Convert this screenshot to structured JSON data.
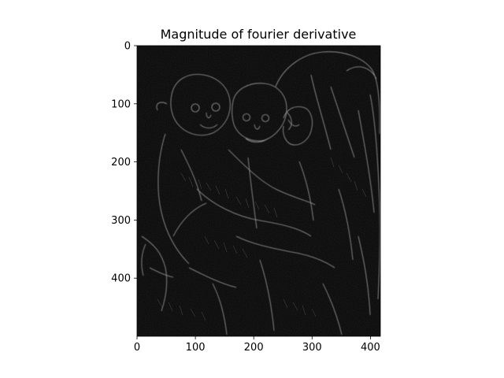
{
  "chart_data": {
    "type": "heatmap",
    "title": "Magnitude of fourier derivative",
    "xlabel": "",
    "ylabel": "",
    "image_width": 417,
    "image_height": 500,
    "xlim": [
      0,
      417
    ],
    "ylim": [
      500,
      0
    ],
    "y_axis_inverted": true,
    "x_ticks": [
      0,
      100,
      200,
      300,
      400
    ],
    "y_ticks": [
      0,
      100,
      200,
      300,
      400
    ],
    "x_tick_labels": [
      "0",
      "100",
      "200",
      "300",
      "400"
    ],
    "y_tick_labels": [
      "0",
      "100",
      "200",
      "300",
      "400"
    ],
    "colormap": "gray",
    "background_color": "#050505",
    "edge_color": "#d8d8d8",
    "subject": "two monkeys embracing in front of a larger ape",
    "grid": false,
    "legend": "none"
  }
}
